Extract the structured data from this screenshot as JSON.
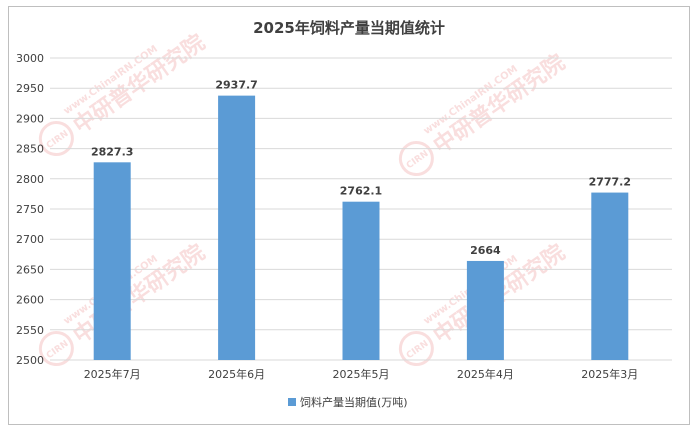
{
  "chart_data": {
    "type": "bar",
    "title": "2025年饲料产量当期值统计",
    "categories": [
      "2025年7月",
      "2025年6月",
      "2025年5月",
      "2025年4月",
      "2025年3月"
    ],
    "series": [
      {
        "name": "饲料产量当期值(万吨)",
        "values": [
          2827.3,
          2937.7,
          2762.1,
          2664,
          2777.2
        ],
        "labels": [
          "2827.3",
          "2937.7",
          "2762.1",
          "2664",
          "2777.2"
        ]
      }
    ],
    "ylim": [
      2500,
      3000
    ],
    "yticks": [
      2500,
      2550,
      2600,
      2650,
      2700,
      2750,
      2800,
      2850,
      2900,
      2950,
      3000
    ],
    "grid": true,
    "legend_position": "bottom",
    "xlabel": "",
    "ylabel": ""
  },
  "watermark": {
    "logo_text": "CIRN",
    "text_en": "www.ChinaIRN.COM",
    "text_cn": "中研普华研究院"
  },
  "colors": {
    "bar": "#5b9bd5",
    "grid": "#d9d9d9",
    "axis_text": "#404040",
    "title": "#404040",
    "border": "#bfbfbf",
    "watermark": "#f2b8b8"
  }
}
